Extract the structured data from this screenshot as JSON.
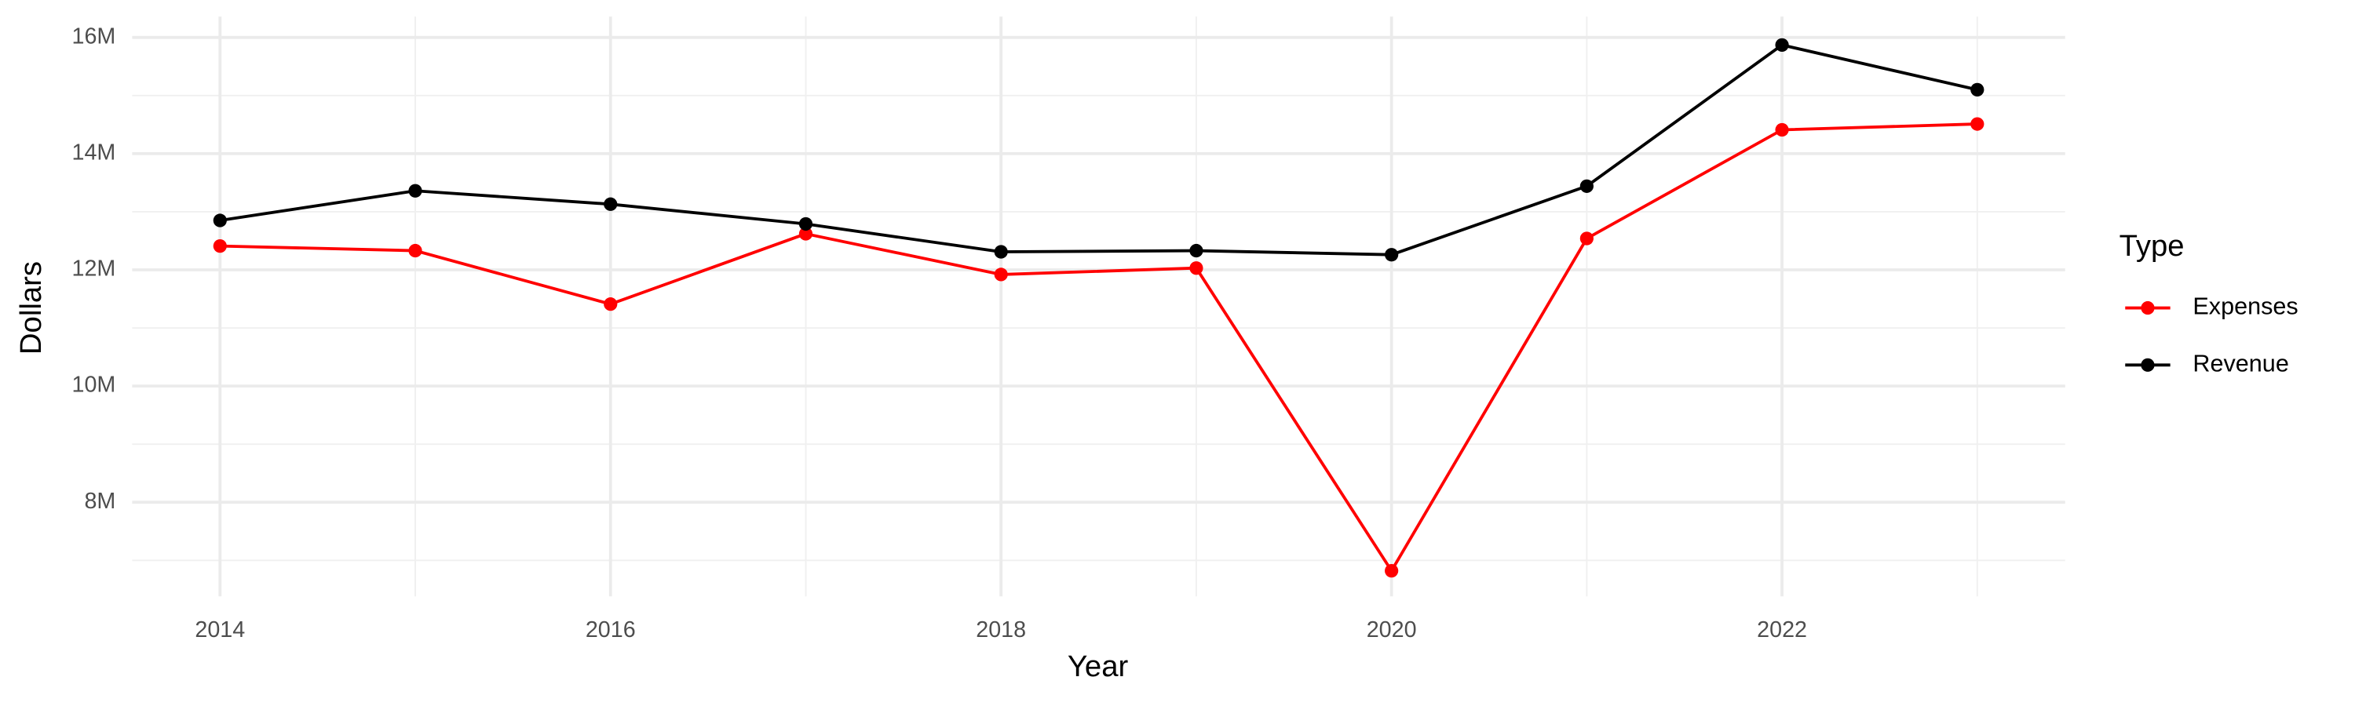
{
  "chart_data": {
    "type": "line",
    "x_label": "Year",
    "y_label": "Dollars",
    "x": [
      2014,
      2015,
      2016,
      2017,
      2018,
      2019,
      2020,
      2021,
      2022,
      2023
    ],
    "series": [
      {
        "name": "Expenses",
        "color": "#ff0000",
        "values": [
          12410000,
          12330000,
          11410000,
          12620000,
          11920000,
          12030000,
          6820000,
          12540000,
          14410000,
          14510000
        ]
      },
      {
        "name": "Revenue",
        "color": "#000000",
        "values": [
          12850000,
          13360000,
          13130000,
          12790000,
          12310000,
          12330000,
          12260000,
          13440000,
          15870000,
          15100000
        ]
      }
    ],
    "xlim": [
      2013.55,
      2023.45
    ],
    "xticks": [
      2014,
      2016,
      2018,
      2020,
      2022
    ],
    "ylim": [
      6380000,
      16360000
    ],
    "yticks": [
      {
        "value": 8000000,
        "label": "8M"
      },
      {
        "value": 10000000,
        "label": "10M"
      },
      {
        "value": 12000000,
        "label": "12M"
      },
      {
        "value": 14000000,
        "label": "14M"
      },
      {
        "value": 16000000,
        "label": "16M"
      }
    ],
    "grid": true,
    "legend_title": "Type",
    "legend": "right"
  }
}
